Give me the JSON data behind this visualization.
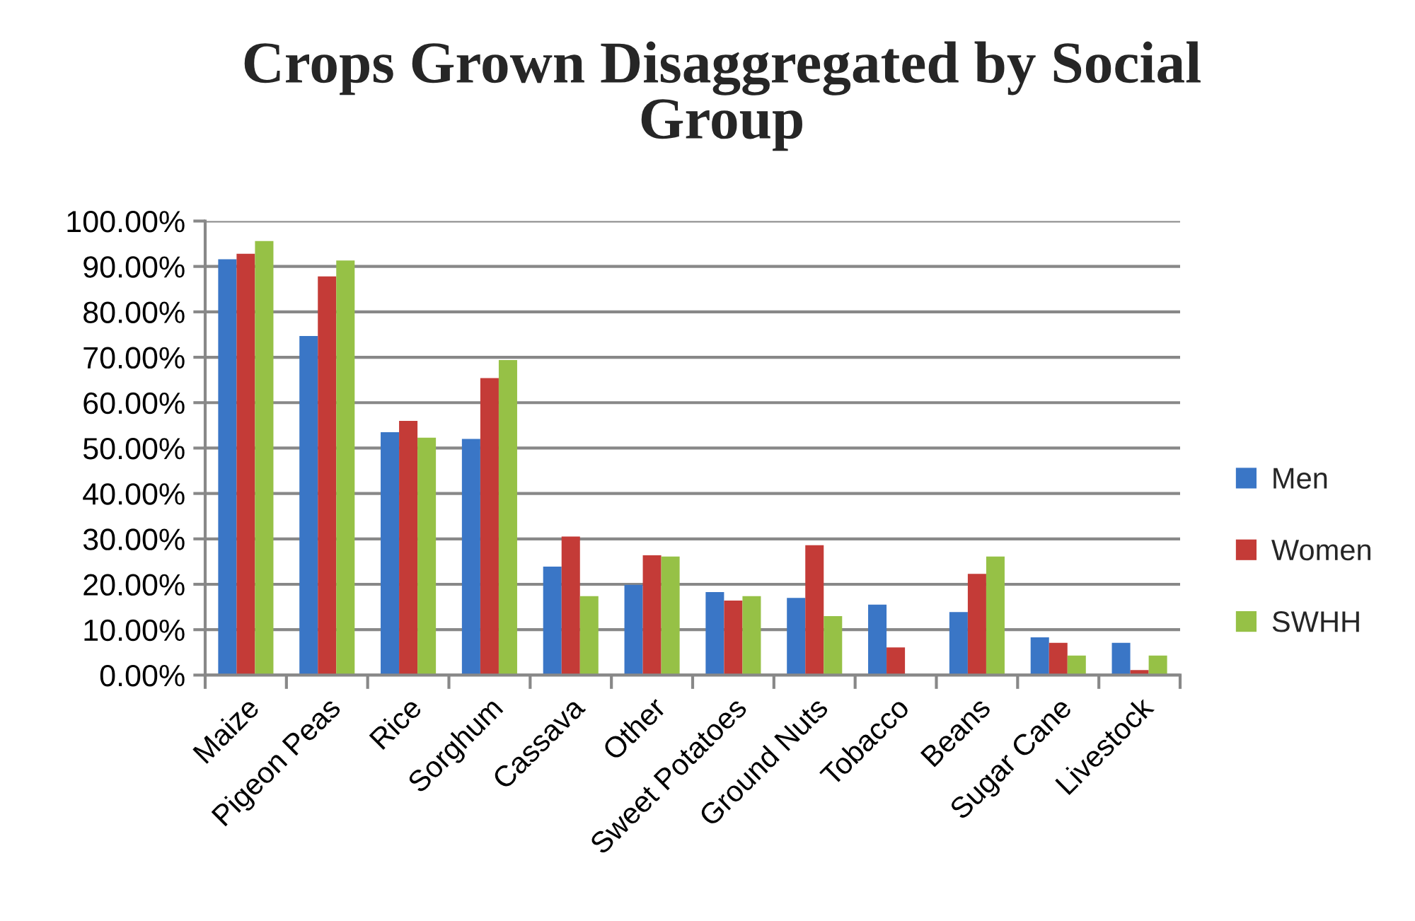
{
  "chart_data": {
    "type": "bar",
    "title": "Crops Grown Disaggregated by Social Group",
    "categories": [
      "Maize",
      "Pigeon Peas",
      "Rice",
      "Sorghum",
      "Cassava",
      "Other",
      "Sweet Potatoes",
      "Ground Nuts",
      "Tobacco",
      "Beans",
      "Sugar Cane",
      "Livestock"
    ],
    "series": [
      {
        "name": "Men",
        "color": "#3a76c6",
        "values": [
          91.6,
          74.7,
          53.5,
          52.0,
          23.9,
          19.9,
          18.3,
          17.0,
          15.5,
          13.9,
          8.3,
          7.1
        ]
      },
      {
        "name": "Women",
        "color": "#c43b37",
        "values": [
          92.8,
          87.8,
          56.0,
          65.4,
          30.5,
          26.4,
          16.4,
          28.6,
          6.1,
          22.3,
          7.1,
          1.1
        ]
      },
      {
        "name": "SWHH",
        "color": "#96c146",
        "values": [
          95.6,
          91.3,
          52.3,
          69.4,
          17.4,
          26.1,
          17.4,
          13.0,
          null,
          26.1,
          4.3,
          4.3
        ]
      }
    ],
    "ylim": [
      0,
      100
    ],
    "yticks": [
      {
        "value": 0,
        "label": "0.00%"
      },
      {
        "value": 10,
        "label": "10.00%"
      },
      {
        "value": 20,
        "label": "20.00%"
      },
      {
        "value": 30,
        "label": "30.00%"
      },
      {
        "value": 40,
        "label": "40.00%"
      },
      {
        "value": 50,
        "label": "50.00%"
      },
      {
        "value": 60,
        "label": "60.00%"
      },
      {
        "value": 70,
        "label": "70.00%"
      },
      {
        "value": 80,
        "label": "80.00%"
      },
      {
        "value": 90,
        "label": "90.00%"
      },
      {
        "value": 100,
        "label": "100.00%"
      }
    ],
    "grid": "y",
    "legend": "right"
  }
}
